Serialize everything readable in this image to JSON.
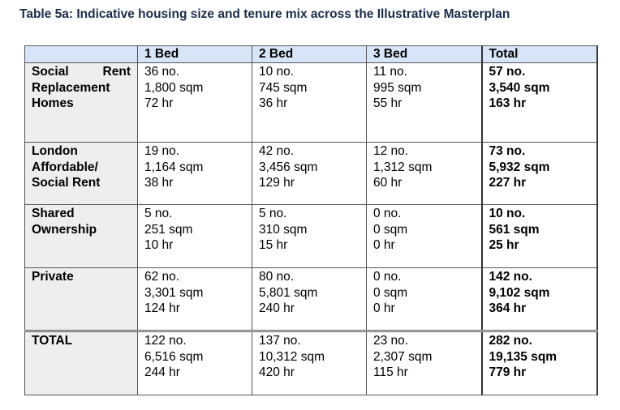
{
  "caption": "Table 5a: Indicative housing size and tenure mix across the Illustrative Masterplan",
  "headers": [
    "",
    "1 Bed",
    "2 Bed",
    "3 Bed",
    "Total"
  ],
  "rows": [
    {
      "label_lines": [
        "Social Rent",
        "Replacement",
        "Homes"
      ],
      "cells": [
        [
          "36 no.",
          "1,800 sqm",
          "72 hr"
        ],
        [
          "10 no.",
          "745 sqm",
          "36 hr"
        ],
        [
          "11 no.",
          "995 sqm",
          "55 hr"
        ],
        [
          "57 no.",
          "3,540 sqm",
          "163 hr"
        ]
      ]
    },
    {
      "label_lines": [
        "London",
        "Affordable/",
        "Social Rent"
      ],
      "cells": [
        [
          "19 no.",
          "1,164 sqm",
          "38 hr"
        ],
        [
          "42 no.",
          "3,456 sqm",
          "129 hr"
        ],
        [
          "12 no.",
          "1,312 sqm",
          "60 hr"
        ],
        [
          "73 no.",
          "5,932 sqm",
          "227 hr"
        ]
      ]
    },
    {
      "label_lines": [
        "Shared",
        "Ownership"
      ],
      "cells": [
        [
          "5 no.",
          "251 sqm",
          "10 hr"
        ],
        [
          "5 no.",
          "310 sqm",
          "15 hr"
        ],
        [
          "0 no.",
          "0 sqm",
          "0 hr"
        ],
        [
          "10 no.",
          "561 sqm",
          "25 hr"
        ]
      ]
    },
    {
      "label_lines": [
        "Private"
      ],
      "cells": [
        [
          "62 no.",
          "3,301 sqm",
          "124 hr"
        ],
        [
          "80 no.",
          "5,801 sqm",
          "240 hr"
        ],
        [
          "0 no.",
          "0 sqm",
          "0 hr"
        ],
        [
          "142 no.",
          "9,102 sqm",
          "364 hr"
        ]
      ]
    },
    {
      "label_lines": [
        "TOTAL"
      ],
      "cells": [
        [
          "122 no.",
          "6,516 sqm",
          "244 hr"
        ],
        [
          "137 no.",
          "10,312 sqm",
          "420 hr"
        ],
        [
          "23 no.",
          "2,307 sqm",
          "115 hr"
        ],
        [
          "282 no.",
          "19,135 sqm",
          "779 hr"
        ]
      ]
    }
  ],
  "colors": {
    "header_bg": "#d6e6f8",
    "rowhead_bg": "#eeeeee",
    "caption_text": "#1a2c4a"
  }
}
